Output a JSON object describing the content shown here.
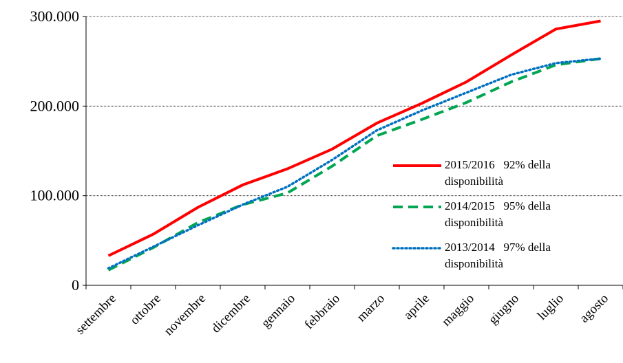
{
  "chart_data": {
    "type": "line",
    "categories": [
      "settembre",
      "ottobre",
      "novembre",
      "dicembre",
      "gennaio",
      "febbraio",
      "marzo",
      "aprile",
      "maggio",
      "giugno",
      "luglio",
      "agosto"
    ],
    "series": [
      {
        "name": "2015/2016   92% della disponibilità",
        "color": "#ff0000",
        "dash": "solid",
        "values": [
          33000,
          57000,
          87000,
          112000,
          130000,
          152000,
          181000,
          203000,
          227000,
          257000,
          286000,
          295000
        ]
      },
      {
        "name": "2014/2015   95% della disponibilità",
        "color": "#00a651",
        "dash": "dashed",
        "values": [
          17000,
          42000,
          70000,
          90000,
          103000,
          133000,
          167000,
          185000,
          204000,
          227000,
          246000,
          253000
        ]
      },
      {
        "name": "2013/2014   97% della disponibilità",
        "color": "#0070c0",
        "dash": "dotted",
        "values": [
          19000,
          43000,
          67000,
          90000,
          110000,
          140000,
          173000,
          195000,
          215000,
          235000,
          248000,
          253000
        ]
      }
    ],
    "ylim": [
      0,
      300000
    ],
    "yticks": [
      0,
      {
        "value": 100000,
        "label": "100.000"
      },
      {
        "value": 200000,
        "label": "200.000"
      },
      {
        "value": 300000,
        "label": "300.000"
      }
    ],
    "grid": true,
    "legend": "right"
  }
}
